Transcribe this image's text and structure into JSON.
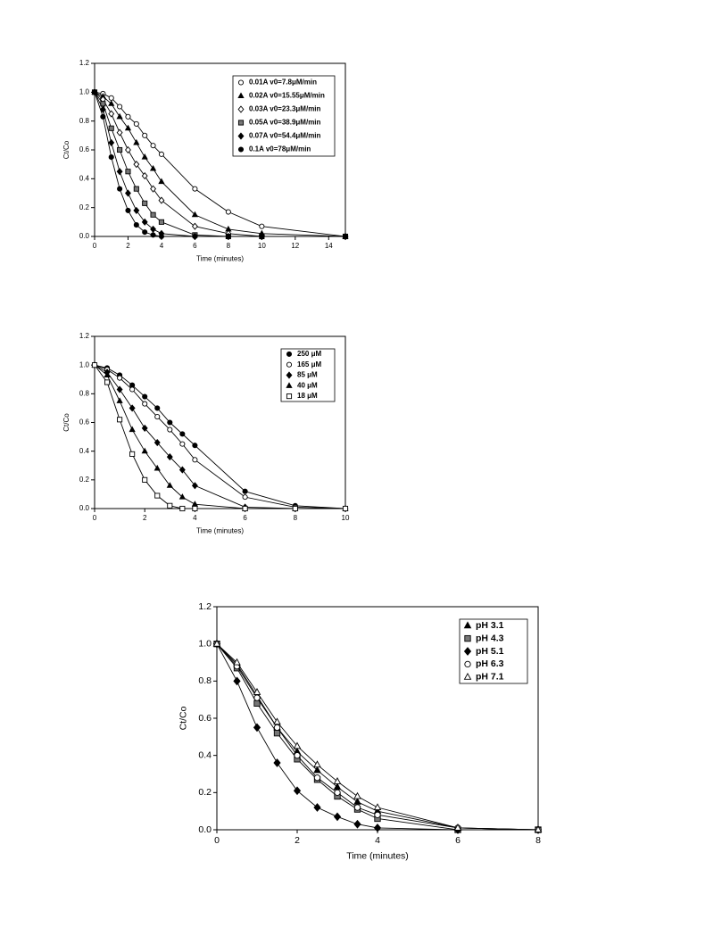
{
  "chart_data": [
    {
      "type": "line",
      "x_label": "Time (minutes)",
      "y_label": "Ct/Co",
      "legend": "upper right",
      "x": [
        0,
        0.5,
        1,
        1.5,
        2,
        2.5,
        3,
        3.5,
        4,
        6,
        8,
        10,
        15
      ],
      "xlim": [
        0,
        15
      ],
      "xticks": [
        0,
        2,
        4,
        6,
        8,
        10,
        12,
        14
      ],
      "ylim": [
        0,
        1.2
      ],
      "yticks": [
        {
          "value": 0,
          "label": "0.0"
        },
        0.2,
        0.4,
        0.6,
        0.8,
        {
          "value": 1,
          "label": "1.0"
        },
        1.2
      ],
      "series": [
        {
          "name": "0.01A v0=7.8μM/min",
          "color": "#000000",
          "marker": "circle-open",
          "values": [
            1,
            0.99,
            0.96,
            0.9,
            0.83,
            0.78,
            0.7,
            0.63,
            0.57,
            0.33,
            0.17,
            0.07,
            0
          ]
        },
        {
          "name": "0.02A v0=15.55μM/min",
          "color": "#000000",
          "marker": "triangle",
          "values": [
            1,
            0.97,
            0.92,
            0.83,
            0.75,
            0.65,
            0.55,
            0.47,
            0.38,
            0.15,
            0.05,
            0.02,
            0
          ]
        },
        {
          "name": "0.03A v0=23.3μM/min",
          "color": "#000000",
          "marker": "diamond-open",
          "values": [
            1,
            0.95,
            0.85,
            0.72,
            0.6,
            0.5,
            0.42,
            0.33,
            0.25,
            0.07,
            0.02,
            0,
            0
          ]
        },
        {
          "name": "0.05A v0=38.9μM/min",
          "color": "#000000",
          "marker": "square-half",
          "values": [
            1,
            0.92,
            0.75,
            0.6,
            0.45,
            0.33,
            0.23,
            0.15,
            0.1,
            0.01,
            0,
            0,
            0
          ]
        },
        {
          "name": "0.07A v0=54.4μM/min",
          "color": "#000000",
          "marker": "diamond",
          "values": [
            1,
            0.88,
            0.65,
            0.45,
            0.3,
            0.18,
            0.1,
            0.05,
            0.02,
            0,
            0,
            0,
            0
          ]
        },
        {
          "name": "0.1A v0=78μM/min",
          "color": "#000000",
          "marker": "circle",
          "values": [
            1,
            0.83,
            0.55,
            0.33,
            0.18,
            0.08,
            0.03,
            0.01,
            0,
            0,
            0,
            0,
            0
          ]
        }
      ]
    },
    {
      "type": "line",
      "x_label": "Time (minutes)",
      "y_label": "Ct/Co",
      "legend": "upper right",
      "x": [
        0,
        0.5,
        1,
        1.5,
        2,
        2.5,
        3,
        3.5,
        4,
        6,
        8,
        10
      ],
      "xlim": [
        0,
        10
      ],
      "xticks": [
        0,
        2,
        4,
        6,
        8,
        10
      ],
      "ylim": [
        0,
        1.2
      ],
      "yticks": [
        {
          "value": 0,
          "label": "0.0"
        },
        0.2,
        0.4,
        0.6,
        0.8,
        {
          "value": 1,
          "label": "1.0"
        },
        1.2
      ],
      "series": [
        {
          "name": "250 μM",
          "color": "#000000",
          "marker": "circle",
          "values": [
            1,
            0.98,
            0.93,
            0.86,
            0.78,
            0.7,
            0.6,
            0.52,
            0.44,
            0.12,
            0.02,
            0
          ]
        },
        {
          "name": "165 μM",
          "color": "#000000",
          "marker": "circle-open",
          "values": [
            1,
            0.97,
            0.91,
            0.83,
            0.73,
            0.64,
            0.55,
            0.45,
            0.34,
            0.08,
            0.01,
            0
          ]
        },
        {
          "name": "85 μM",
          "color": "#000000",
          "marker": "diamond",
          "values": [
            1,
            0.95,
            0.83,
            0.7,
            0.56,
            0.46,
            0.36,
            0.27,
            0.16,
            0.01,
            0,
            0
          ]
        },
        {
          "name": "40 μM",
          "color": "#000000",
          "marker": "triangle",
          "values": [
            1,
            0.93,
            0.75,
            0.55,
            0.4,
            0.28,
            0.16,
            0.08,
            0.03,
            0,
            0,
            0
          ]
        },
        {
          "name": "18 μM",
          "color": "#000000",
          "marker": "square-open",
          "values": [
            1,
            0.88,
            0.62,
            0.38,
            0.2,
            0.09,
            0.02,
            0,
            0,
            0,
            0,
            0
          ]
        }
      ]
    },
    {
      "type": "line",
      "x_label": "Time (minutes)",
      "y_label": "Ct/Co",
      "legend": "upper right",
      "x": [
        0,
        0.5,
        1,
        1.5,
        2,
        2.5,
        3,
        3.5,
        4,
        6,
        8
      ],
      "xlim": [
        0,
        8
      ],
      "xticks": [
        0,
        2,
        4,
        6,
        8
      ],
      "ylim": [
        0,
        1.2
      ],
      "yticks": [
        {
          "value": 0,
          "label": "0.0"
        },
        0.2,
        0.4,
        0.6,
        0.8,
        {
          "value": 1,
          "label": "1.0"
        },
        1.2
      ],
      "series": [
        {
          "name": "pH 3.1",
          "color": "#000000",
          "marker": "triangle",
          "values": [
            1,
            0.89,
            0.72,
            0.55,
            0.42,
            0.32,
            0.23,
            0.15,
            0.1,
            0.01,
            0
          ]
        },
        {
          "name": "pH 4.3",
          "color": "#000000",
          "marker": "square-half",
          "values": [
            1,
            0.87,
            0.68,
            0.52,
            0.38,
            0.27,
            0.18,
            0.11,
            0.06,
            0,
            0
          ]
        },
        {
          "name": "pH 5.1",
          "color": "#000000",
          "marker": "diamond",
          "values": [
            1,
            0.8,
            0.55,
            0.36,
            0.21,
            0.12,
            0.07,
            0.03,
            0.01,
            0,
            0
          ]
        },
        {
          "name": "pH 6.3",
          "color": "#000000",
          "marker": "circle-open",
          "values": [
            1,
            0.88,
            0.71,
            0.55,
            0.4,
            0.28,
            0.2,
            0.12,
            0.08,
            0.01,
            0
          ]
        },
        {
          "name": "pH 7.1",
          "color": "#000000",
          "marker": "triangle-open",
          "values": [
            1,
            0.9,
            0.74,
            0.58,
            0.45,
            0.35,
            0.26,
            0.18,
            0.12,
            0.01,
            0
          ]
        }
      ]
    }
  ]
}
